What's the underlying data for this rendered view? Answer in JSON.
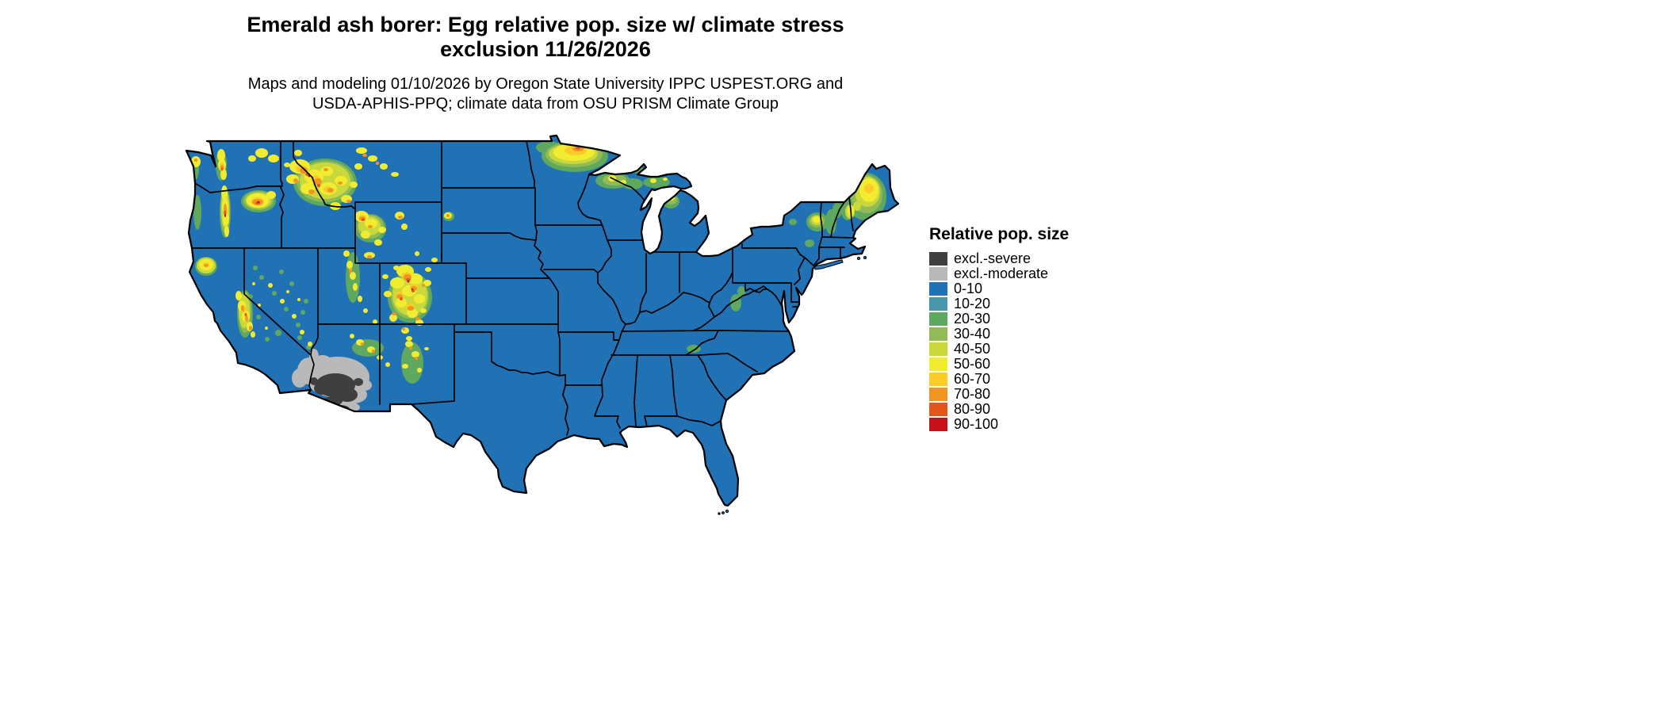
{
  "header": {
    "title_line1": "Emerald ash borer: Egg relative pop. size w/ climate stress",
    "title_line2": "exclusion 11/26/2026",
    "subtitle_line1": "Maps and modeling 01/10/2026 by Oregon State University IPPC USPEST.ORG and",
    "subtitle_line2": "USDA-APHIS-PPQ; climate data from OSU PRISM Climate Group"
  },
  "map": {
    "name": "Continental United States",
    "base_color": "#2171b5",
    "border_color": "#000000",
    "water_color": "#ffffff"
  },
  "legend": {
    "title": "Relative pop. size",
    "items": [
      {
        "label": "excl.-severe",
        "color": "#3f3f3f"
      },
      {
        "label": "excl.-moderate",
        "color": "#b9b9b9"
      },
      {
        "label": "0-10",
        "color": "#2171b5"
      },
      {
        "label": "10-20",
        "color": "#4697a9"
      },
      {
        "label": "20-30",
        "color": "#5fa85f"
      },
      {
        "label": "30-40",
        "color": "#90bb56"
      },
      {
        "label": "40-50",
        "color": "#c9d93c"
      },
      {
        "label": "50-60",
        "color": "#f2ec31"
      },
      {
        "label": "60-70",
        "color": "#fccb2a"
      },
      {
        "label": "70-80",
        "color": "#f29422"
      },
      {
        "label": "80-90",
        "color": "#e2561e"
      },
      {
        "label": "90-100",
        "color": "#c8101a"
      }
    ]
  }
}
